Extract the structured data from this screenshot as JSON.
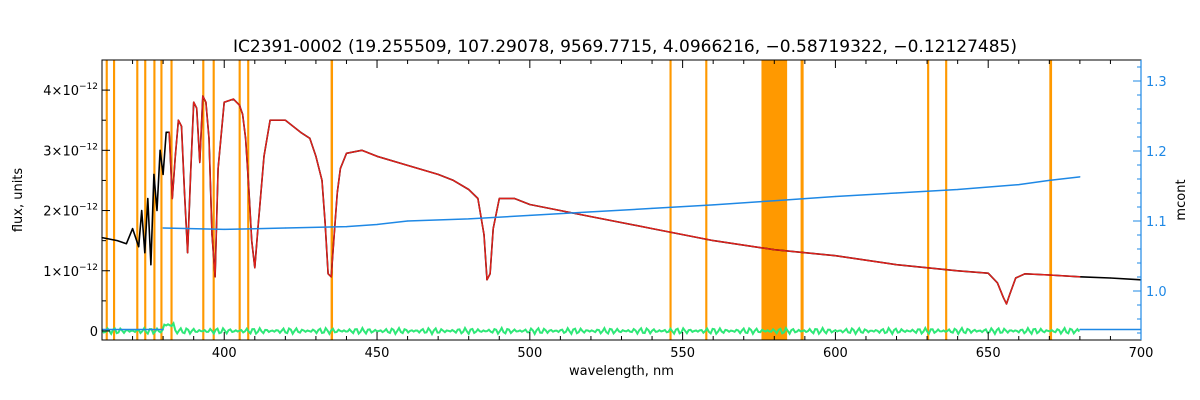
{
  "chart_data": {
    "type": "line",
    "title": "IC2391-0002    (19.255509, 107.29078, 9569.7715, 4.0966216, −0.58719322, −0.12127485)",
    "xlabel": "wavelength, nm",
    "ylabel": "flux, units",
    "ylabel_right": "mcont",
    "xlim": [
      360,
      700
    ],
    "ylim": [
      -1.5e-13,
      4.5e-12
    ],
    "ylim_right": [
      0.93,
      1.33
    ],
    "x_ticks": [
      400,
      450,
      500,
      550,
      600,
      650,
      700
    ],
    "x_tick_labels": [
      "400",
      "450",
      "500",
      "550",
      "600",
      "650",
      "700"
    ],
    "y_ticks": [
      0,
      1e-12,
      2e-12,
      3e-12,
      4e-12
    ],
    "y_tick_labels": [
      {
        "mant": "0",
        "exp": ""
      },
      {
        "mant": "1×10",
        "exp": "−12"
      },
      {
        "mant": "2×10",
        "exp": "−12"
      },
      {
        "mant": "3×10",
        "exp": "−12"
      },
      {
        "mant": "4×10",
        "exp": "−12"
      }
    ],
    "y_ticks_right": [
      1.0,
      1.1,
      1.2,
      1.3
    ],
    "y_tick_labels_right": [
      "1.0",
      "1.1",
      "1.2",
      "1.3"
    ],
    "colors": {
      "observed": "#000000",
      "model": "#e0201b",
      "residual": "#2ee878",
      "mcont": "#1e88e5",
      "masks": "#ff9900",
      "right_axis": "#1e88e5"
    },
    "mask_regions": [
      [
        361.2,
        361.9
      ],
      [
        363.6,
        364.3
      ],
      [
        371.2,
        371.9
      ],
      [
        373.8,
        374.5
      ],
      [
        376.8,
        377.5
      ],
      [
        379.1,
        379.8
      ],
      [
        382.4,
        383.1
      ],
      [
        392.8,
        393.5
      ],
      [
        396.2,
        396.9
      ],
      [
        404.7,
        405.4
      ],
      [
        407.5,
        408.2
      ],
      [
        434.8,
        435.6
      ],
      [
        545.7,
        546.4
      ],
      [
        557.4,
        558.1
      ],
      [
        575.8,
        584.2
      ],
      [
        588.6,
        589.6
      ],
      [
        630.0,
        630.7
      ],
      [
        635.9,
        636.6
      ],
      [
        670.0,
        670.9
      ]
    ],
    "series": [
      {
        "id": "observed",
        "x": [
          360,
          365,
          368,
          370,
          372,
          373,
          374,
          375,
          376,
          377,
          378,
          379,
          380,
          381,
          382,
          383,
          384,
          385,
          386,
          387,
          388,
          389,
          390,
          391,
          392,
          393,
          394,
          395,
          396,
          397,
          398,
          400,
          403,
          405,
          406,
          407,
          408,
          409,
          410,
          411,
          413,
          415,
          420,
          425,
          428,
          430,
          432,
          433,
          434,
          435,
          436,
          437,
          438,
          440,
          445,
          450,
          460,
          470,
          475,
          480,
          483,
          485,
          486,
          487,
          488,
          490,
          495,
          500,
          520,
          540,
          560,
          580,
          600,
          620,
          640,
          650,
          653,
          655,
          656,
          657,
          659,
          662,
          670,
          680,
          690,
          700
        ],
        "y": [
          1.55e-12,
          1.5e-12,
          1.45e-12,
          1.7e-12,
          1.4e-12,
          2e-12,
          1.3e-12,
          2.2e-12,
          1.1e-12,
          2.6e-12,
          2e-12,
          3e-12,
          2.6e-12,
          3.3e-12,
          3.3e-12,
          2.2e-12,
          2.9e-12,
          3.5e-12,
          3.4e-12,
          2.3e-12,
          1.3e-12,
          2.6e-12,
          3.8e-12,
          3.7e-12,
          2.8e-12,
          3.9e-12,
          3.8e-12,
          3.2e-12,
          1.6e-12,
          9e-13,
          2.7e-12,
          3.8e-12,
          3.85e-12,
          3.75e-12,
          3.6e-12,
          3.2e-12,
          2.4e-12,
          1.5e-12,
          1.05e-12,
          1.7e-12,
          2.9e-12,
          3.5e-12,
          3.5e-12,
          3.3e-12,
          3.2e-12,
          2.9e-12,
          2.5e-12,
          1.8e-12,
          9.5e-13,
          9e-13,
          1.6e-12,
          2.3e-12,
          2.7e-12,
          2.95e-12,
          3e-12,
          2.9e-12,
          2.75e-12,
          2.6e-12,
          2.5e-12,
          2.35e-12,
          2.2e-12,
          1.6e-12,
          8.5e-13,
          9.5e-13,
          1.7e-12,
          2.2e-12,
          2.2e-12,
          2.1e-12,
          1.9e-12,
          1.7e-12,
          1.5e-12,
          1.35e-12,
          1.25e-12,
          1.1e-12,
          1e-12,
          9.6e-13,
          8e-13,
          5.5e-13,
          4.5e-13,
          6e-13,
          8.8e-13,
          9.5e-13,
          9.3e-13,
          9e-13,
          8.8e-13,
          8.5e-13
        ]
      },
      {
        "id": "model",
        "x": [
          382,
          383,
          384,
          385,
          386,
          387,
          388,
          389,
          390,
          391,
          392,
          393,
          394,
          395,
          396,
          397,
          398,
          400,
          403,
          405,
          406,
          407,
          408,
          409,
          410,
          411,
          413,
          415,
          420,
          425,
          428,
          430,
          432,
          433,
          434,
          435,
          436,
          437,
          438,
          440,
          445,
          450,
          460,
          470,
          475,
          480,
          483,
          485,
          486,
          487,
          488,
          490,
          495,
          500,
          520,
          540,
          560,
          580,
          600,
          620,
          640,
          650,
          653,
          655,
          656,
          657,
          659,
          662,
          670,
          680
        ],
        "y": [
          3.3e-12,
          2.2e-12,
          2.9e-12,
          3.5e-12,
          3.4e-12,
          2.3e-12,
          1.3e-12,
          2.6e-12,
          3.8e-12,
          3.7e-12,
          2.8e-12,
          3.9e-12,
          3.8e-12,
          3.2e-12,
          1.6e-12,
          9e-13,
          2.7e-12,
          3.8e-12,
          3.85e-12,
          3.75e-12,
          3.6e-12,
          3.2e-12,
          2.4e-12,
          1.5e-12,
          1.05e-12,
          1.7e-12,
          2.9e-12,
          3.5e-12,
          3.5e-12,
          3.3e-12,
          3.2e-12,
          2.9e-12,
          2.5e-12,
          1.8e-12,
          9.5e-13,
          9e-13,
          1.6e-12,
          2.3e-12,
          2.7e-12,
          2.95e-12,
          3e-12,
          2.9e-12,
          2.75e-12,
          2.6e-12,
          2.5e-12,
          2.35e-12,
          2.2e-12,
          1.6e-12,
          8.5e-13,
          9.5e-13,
          1.7e-12,
          2.2e-12,
          2.2e-12,
          2.1e-12,
          1.9e-12,
          1.7e-12,
          1.5e-12,
          1.35e-12,
          1.25e-12,
          1.1e-12,
          1e-12,
          9.6e-13,
          8e-13,
          5.5e-13,
          4.5e-13,
          6e-13,
          8.8e-13,
          9.5e-13,
          9.3e-13,
          9e-13
        ]
      },
      {
        "id": "mcont",
        "axis": "right",
        "x": [
          380,
          400,
          420,
          440,
          450,
          460,
          480,
          500,
          520,
          540,
          560,
          580,
          600,
          620,
          640,
          660,
          670,
          680
        ],
        "y": [
          1.09,
          1.088,
          1.09,
          1.092,
          1.095,
          1.1,
          1.103,
          1.108,
          1.113,
          1.118,
          1.123,
          1.129,
          1.135,
          1.14,
          1.145,
          1.152,
          1.158,
          1.163
        ]
      },
      {
        "id": "mcont-tail",
        "axis": "right",
        "x": [
          680,
          700
        ],
        "y": [
          0.945,
          0.945
        ]
      },
      {
        "id": "mcont-left",
        "axis": "right",
        "x": [
          360,
          380
        ],
        "y": [
          0.945,
          0.945
        ]
      }
    ]
  }
}
